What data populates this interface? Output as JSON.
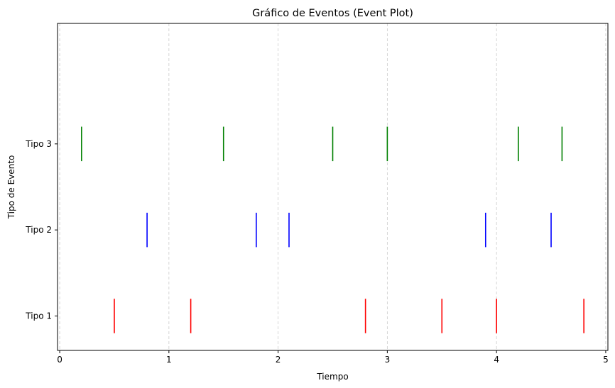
{
  "chart_data": {
    "type": "eventplot",
    "title": "Gráfico de Eventos (Event Plot)",
    "xlabel": "Tiempo",
    "ylabel": "Tipo de Evento",
    "xlim": [
      -0.02,
      5.02
    ],
    "ylim": [
      0.6,
      4.4
    ],
    "xticks": [
      0,
      1,
      2,
      3,
      4,
      5
    ],
    "xtick_labels": [
      "0",
      "1",
      "2",
      "3",
      "4",
      "5"
    ],
    "grid": {
      "axis": "x",
      "style": "dashed"
    },
    "line_length": 0.4,
    "series": [
      {
        "label": "Tipo 1",
        "lineoffset": 1,
        "color": "#ff0000",
        "events": [
          0.5,
          1.2,
          2.8,
          3.5,
          4.0,
          4.8
        ]
      },
      {
        "label": "Tipo 2",
        "lineoffset": 2,
        "color": "#0000ff",
        "events": [
          0.8,
          1.8,
          2.1,
          3.9,
          4.5
        ]
      },
      {
        "label": "Tipo 3",
        "lineoffset": 3,
        "color": "#008000",
        "events": [
          0.2,
          1.5,
          2.5,
          3.0,
          4.2,
          4.6
        ]
      }
    ]
  }
}
